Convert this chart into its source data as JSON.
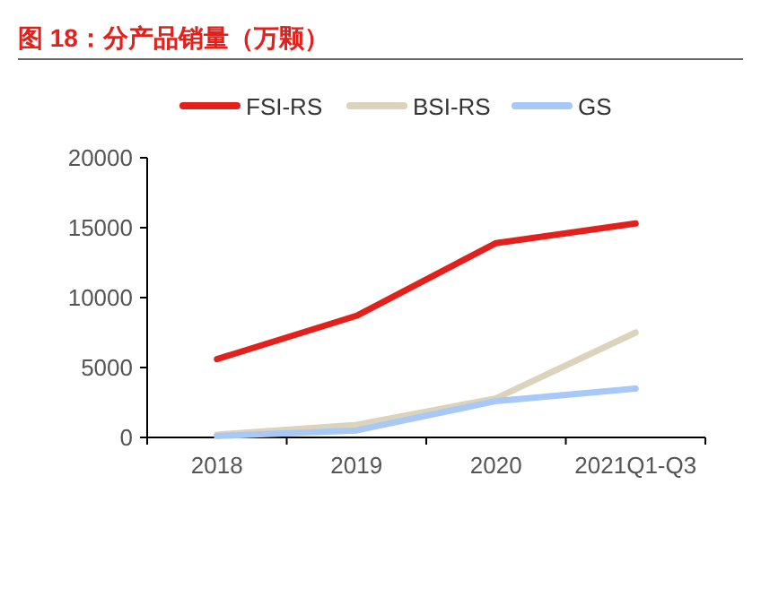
{
  "chart_data": {
    "type": "line",
    "title": "图 18：分产品销量（万颗）",
    "categories": [
      "2018",
      "2019",
      "2020",
      "2021Q1-Q3"
    ],
    "series": [
      {
        "name": "FSI-RS",
        "color": "#e3201b",
        "values": [
          5600,
          8700,
          13900,
          15300
        ]
      },
      {
        "name": "BSI-RS",
        "color": "#dcd3bd",
        "values": [
          200,
          900,
          2800,
          7500
        ]
      },
      {
        "name": "GS",
        "color": "#a8c8f8",
        "values": [
          100,
          500,
          2600,
          3500
        ]
      }
    ],
    "ylim": [
      0,
      20000
    ],
    "yticks": [
      0,
      5000,
      10000,
      15000,
      20000
    ],
    "grid": false,
    "legend": "top",
    "marker": "none",
    "line_style": "solid"
  }
}
